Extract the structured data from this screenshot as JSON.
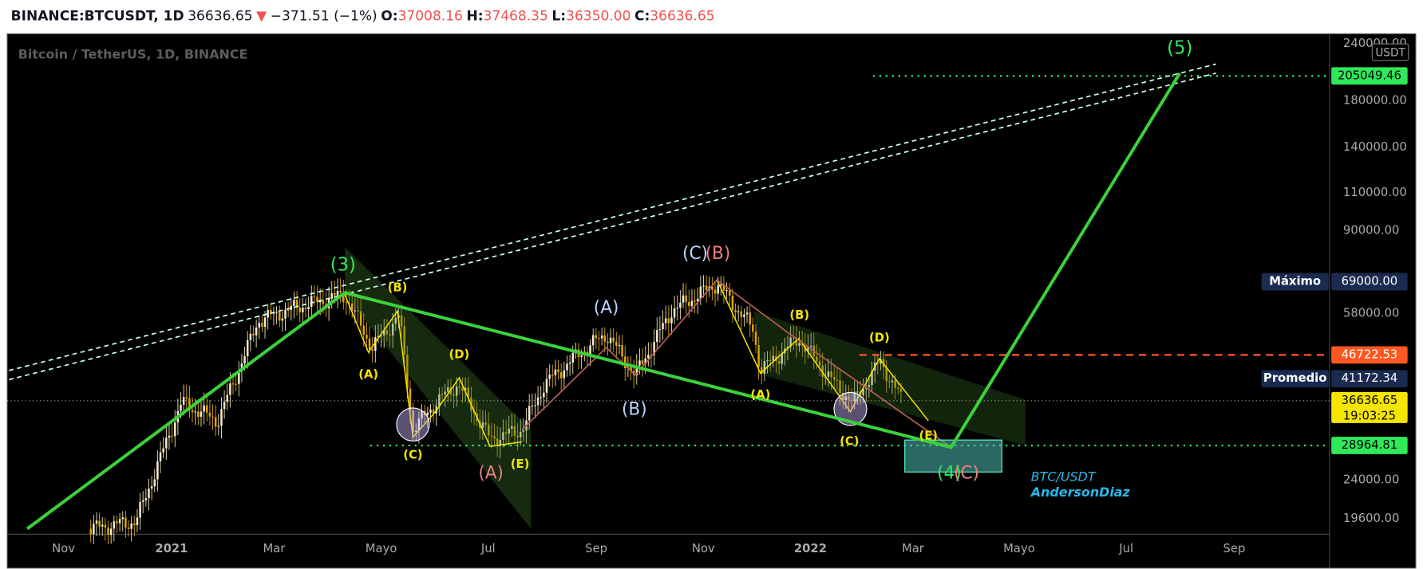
{
  "header": {
    "symbol": "BINANCE:BTCUSDT, 1D",
    "price": "36636.65",
    "arrow": "▼",
    "change": "−371.51 (−1%)",
    "ohlc": [
      {
        "label": "O:",
        "value": "37008.16"
      },
      {
        "label": "H:",
        "value": "37468.35"
      },
      {
        "label": "L:",
        "value": "36350.00"
      },
      {
        "label": "C:",
        "value": "36636.65"
      }
    ]
  },
  "chart": {
    "watermark": "Bitcoin / TetherUS, 1D, BINANCE",
    "currency": "USDT",
    "price_axis": [
      "240000.00",
      "180000.00",
      "140000.00",
      "110000.00",
      "90000.00",
      "58000.00",
      "24000.00",
      "19600.00"
    ],
    "badges": [
      {
        "text": "205049.46"
      },
      {
        "name": "Máximo",
        "text": "69000.00"
      },
      {
        "text": "46722.53"
      },
      {
        "name": "Promedio",
        "text": "41172.34"
      },
      {
        "text": "36636.65",
        "sub": "19:03:25"
      },
      {
        "text": "28964.81"
      }
    ],
    "time_axis": [
      "Nov",
      "2021",
      "Mar",
      "Mayo",
      "Jul",
      "Sep",
      "Nov",
      "2022",
      "Mar",
      "Mayo",
      "Jul",
      "Sep"
    ],
    "wave_labels": [
      "(3)",
      "(5)",
      "(B)",
      "(A)",
      "(C)",
      "(D)",
      "(E)",
      "(A)",
      "(A)",
      "(B)",
      "(C)",
      "(B)",
      "(B)",
      "(A)",
      "(C)",
      "(D)",
      "(E)",
      "(4)",
      "(C)"
    ],
    "author": [
      "BTC/USDT",
      "AndersonDiaz"
    ]
  }
}
